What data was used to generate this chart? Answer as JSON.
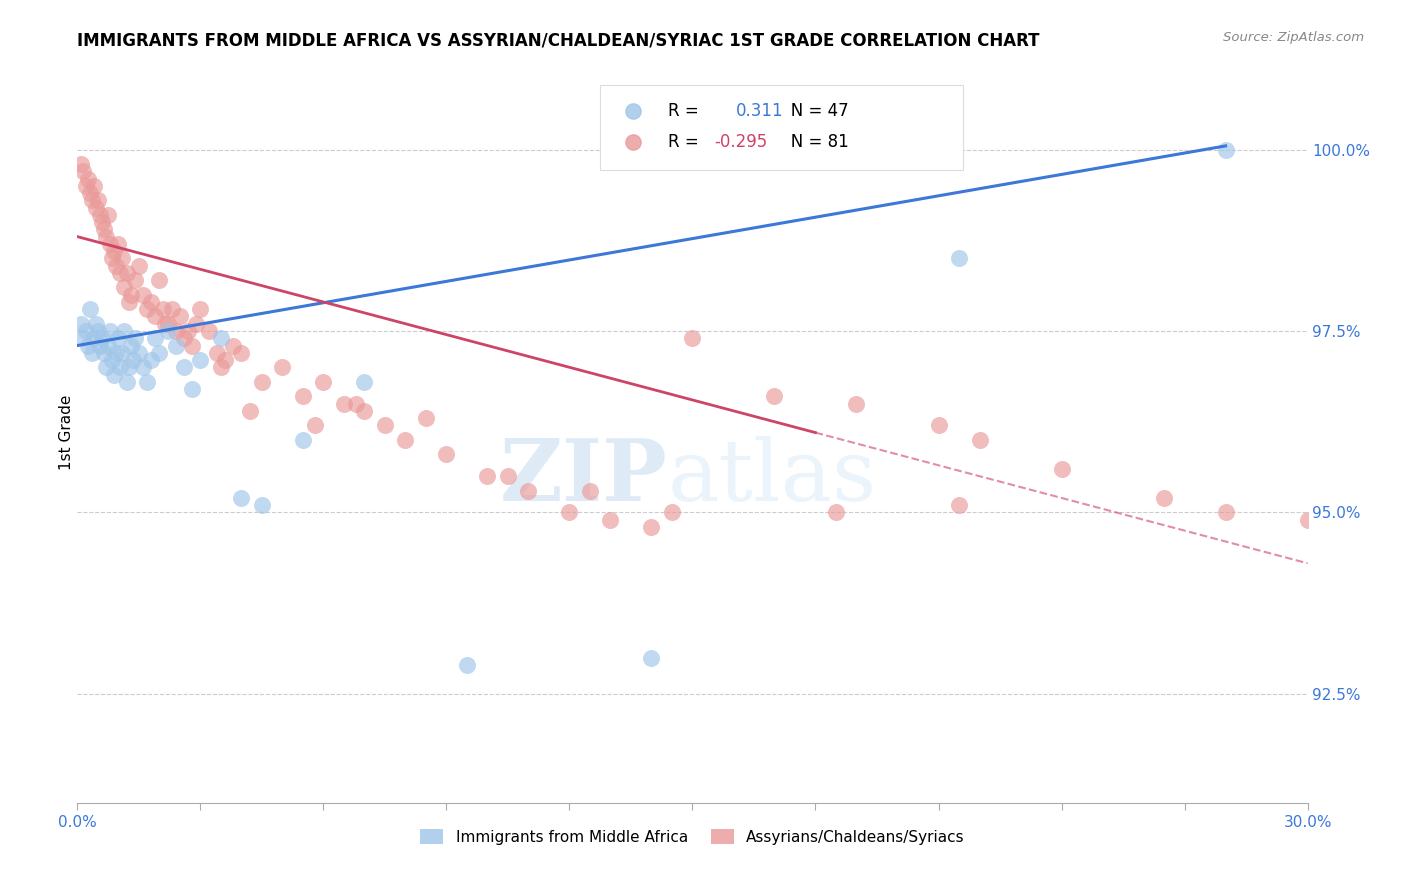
{
  "title": "IMMIGRANTS FROM MIDDLE AFRICA VS ASSYRIAN/CHALDEAN/SYRIAC 1ST GRADE CORRELATION CHART",
  "source": "Source: ZipAtlas.com",
  "ylabel": "1st Grade",
  "right_yticks": [
    100.0,
    97.5,
    95.0,
    92.5
  ],
  "right_ytick_labels": [
    "100.0%",
    "97.5%",
    "95.0%",
    "92.5%"
  ],
  "blue_R": 0.311,
  "blue_N": 47,
  "pink_R": -0.295,
  "pink_N": 81,
  "blue_color": "#9fc5e8",
  "pink_color": "#ea9999",
  "blue_line_color": "#3c78d8",
  "pink_line_color": "#cc4466",
  "legend_blue_label": "Immigrants from Middle Africa",
  "legend_pink_label": "Assyrians/Chaldeans/Syriacs",
  "watermark_zip": "ZIP",
  "watermark_atlas": "atlas",
  "xlim": [
    0.0,
    30.0
  ],
  "ylim": [
    91.0,
    101.2
  ],
  "blue_line_x0": 0.0,
  "blue_line_y0": 97.3,
  "blue_line_x1": 28.0,
  "blue_line_y1": 100.05,
  "pink_line_x0": 0.0,
  "pink_line_y0": 98.8,
  "pink_line_x1": 30.0,
  "pink_line_y1": 94.3,
  "pink_solid_end": 18.0,
  "blue_scatter_x": [
    0.1,
    0.15,
    0.2,
    0.25,
    0.3,
    0.35,
    0.4,
    0.45,
    0.5,
    0.55,
    0.6,
    0.65,
    0.7,
    0.75,
    0.8,
    0.85,
    0.9,
    0.95,
    1.0,
    1.05,
    1.1,
    1.15,
    1.2,
    1.25,
    1.3,
    1.35,
    1.4,
    1.5,
    1.6,
    1.7,
    1.8,
    1.9,
    2.0,
    2.2,
    2.4,
    2.6,
    2.8,
    3.0,
    3.5,
    4.0,
    4.5,
    5.5,
    7.0,
    9.5,
    14.0,
    21.5,
    28.0
  ],
  "blue_scatter_y": [
    97.6,
    97.4,
    97.5,
    97.3,
    97.8,
    97.2,
    97.4,
    97.6,
    97.5,
    97.3,
    97.4,
    97.2,
    97.0,
    97.3,
    97.5,
    97.1,
    96.9,
    97.2,
    97.4,
    97.0,
    97.2,
    97.5,
    96.8,
    97.0,
    97.3,
    97.1,
    97.4,
    97.2,
    97.0,
    96.8,
    97.1,
    97.4,
    97.2,
    97.5,
    97.3,
    97.0,
    96.7,
    97.1,
    97.4,
    95.2,
    95.1,
    96.0,
    96.8,
    92.9,
    93.0,
    98.5,
    100.0
  ],
  "pink_scatter_x": [
    0.1,
    0.15,
    0.2,
    0.25,
    0.3,
    0.35,
    0.4,
    0.45,
    0.5,
    0.55,
    0.6,
    0.65,
    0.7,
    0.75,
    0.8,
    0.85,
    0.9,
    0.95,
    1.0,
    1.05,
    1.1,
    1.15,
    1.2,
    1.3,
    1.4,
    1.5,
    1.6,
    1.7,
    1.8,
    1.9,
    2.0,
    2.1,
    2.2,
    2.3,
    2.4,
    2.5,
    2.6,
    2.7,
    2.8,
    2.9,
    3.0,
    3.2,
    3.4,
    3.6,
    3.8,
    4.0,
    4.5,
    5.0,
    5.5,
    6.0,
    6.5,
    7.0,
    7.5,
    8.0,
    9.0,
    10.0,
    11.0,
    12.0,
    13.0,
    14.0,
    15.0,
    17.0,
    19.0,
    21.0,
    22.0,
    24.0,
    26.5,
    28.0,
    30.0,
    1.25,
    2.15,
    3.5,
    4.2,
    5.8,
    6.8,
    8.5,
    10.5,
    12.5,
    14.5,
    18.5,
    21.5
  ],
  "pink_scatter_y": [
    99.8,
    99.7,
    99.5,
    99.6,
    99.4,
    99.3,
    99.5,
    99.2,
    99.3,
    99.1,
    99.0,
    98.9,
    98.8,
    99.1,
    98.7,
    98.5,
    98.6,
    98.4,
    98.7,
    98.3,
    98.5,
    98.1,
    98.3,
    98.0,
    98.2,
    98.4,
    98.0,
    97.8,
    97.9,
    97.7,
    98.2,
    97.8,
    97.6,
    97.8,
    97.5,
    97.7,
    97.4,
    97.5,
    97.3,
    97.6,
    97.8,
    97.5,
    97.2,
    97.1,
    97.3,
    97.2,
    96.8,
    97.0,
    96.6,
    96.8,
    96.5,
    96.4,
    96.2,
    96.0,
    95.8,
    95.5,
    95.3,
    95.0,
    94.9,
    94.8,
    97.4,
    96.6,
    96.5,
    96.2,
    96.0,
    95.6,
    95.2,
    95.0,
    94.9,
    97.9,
    97.6,
    97.0,
    96.4,
    96.2,
    96.5,
    96.3,
    95.5,
    95.3,
    95.0,
    95.0,
    95.1
  ]
}
